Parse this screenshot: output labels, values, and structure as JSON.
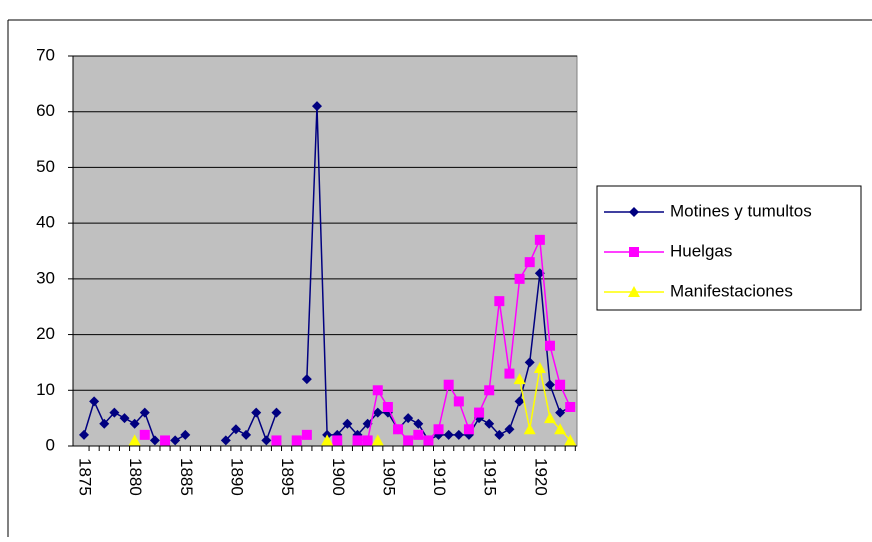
{
  "chart_data": {
    "type": "line",
    "categories": [
      "1875",
      null,
      null,
      null,
      null,
      "1880",
      null,
      null,
      null,
      null,
      "1885",
      null,
      null,
      null,
      null,
      "1890",
      null,
      null,
      null,
      null,
      "1895",
      null,
      null,
      null,
      null,
      "1900",
      null,
      null,
      null,
      null,
      "1905",
      null,
      null,
      null,
      null,
      "1910",
      null,
      null,
      null,
      null,
      "1915",
      null,
      null,
      null,
      null,
      "1920",
      null,
      null,
      null
    ],
    "series": [
      {
        "name": "Motines y tumultos",
        "color": "#000080",
        "marker": "diamond",
        "values": [
          2,
          8,
          4,
          6,
          5,
          4,
          6,
          1,
          null,
          1,
          2,
          null,
          null,
          null,
          1,
          3,
          2,
          6,
          1,
          6,
          null,
          null,
          12,
          61,
          2,
          2,
          4,
          2,
          4,
          6,
          6,
          3,
          5,
          4,
          1,
          2,
          2,
          2,
          2,
          5,
          4,
          2,
          3,
          8,
          15,
          31,
          11,
          6,
          7
        ]
      },
      {
        "name": "Huelgas",
        "color": "#ff00ff",
        "marker": "square",
        "values": [
          null,
          null,
          null,
          null,
          null,
          null,
          2,
          null,
          1,
          null,
          null,
          null,
          null,
          null,
          null,
          null,
          null,
          null,
          null,
          1,
          null,
          1,
          2,
          null,
          null,
          1,
          null,
          1,
          1,
          10,
          7,
          3,
          1,
          2,
          1,
          3,
          11,
          8,
          3,
          6,
          10,
          26,
          13,
          30,
          33,
          37,
          18,
          11,
          7
        ]
      },
      {
        "name": "Manifestaciones",
        "color": "#ffff00",
        "marker": "triangle",
        "values": [
          null,
          null,
          null,
          null,
          null,
          1,
          null,
          null,
          null,
          null,
          null,
          null,
          null,
          null,
          null,
          null,
          null,
          null,
          null,
          null,
          null,
          null,
          null,
          null,
          1,
          null,
          null,
          null,
          null,
          1,
          null,
          null,
          null,
          null,
          null,
          null,
          null,
          null,
          null,
          null,
          null,
          null,
          null,
          12,
          3,
          14,
          5,
          3,
          1
        ]
      }
    ],
    "ylim": [
      0,
      70
    ],
    "yticks": [
      0,
      10,
      20,
      30,
      40,
      50,
      60,
      70
    ],
    "grid": true,
    "legend": "right"
  }
}
